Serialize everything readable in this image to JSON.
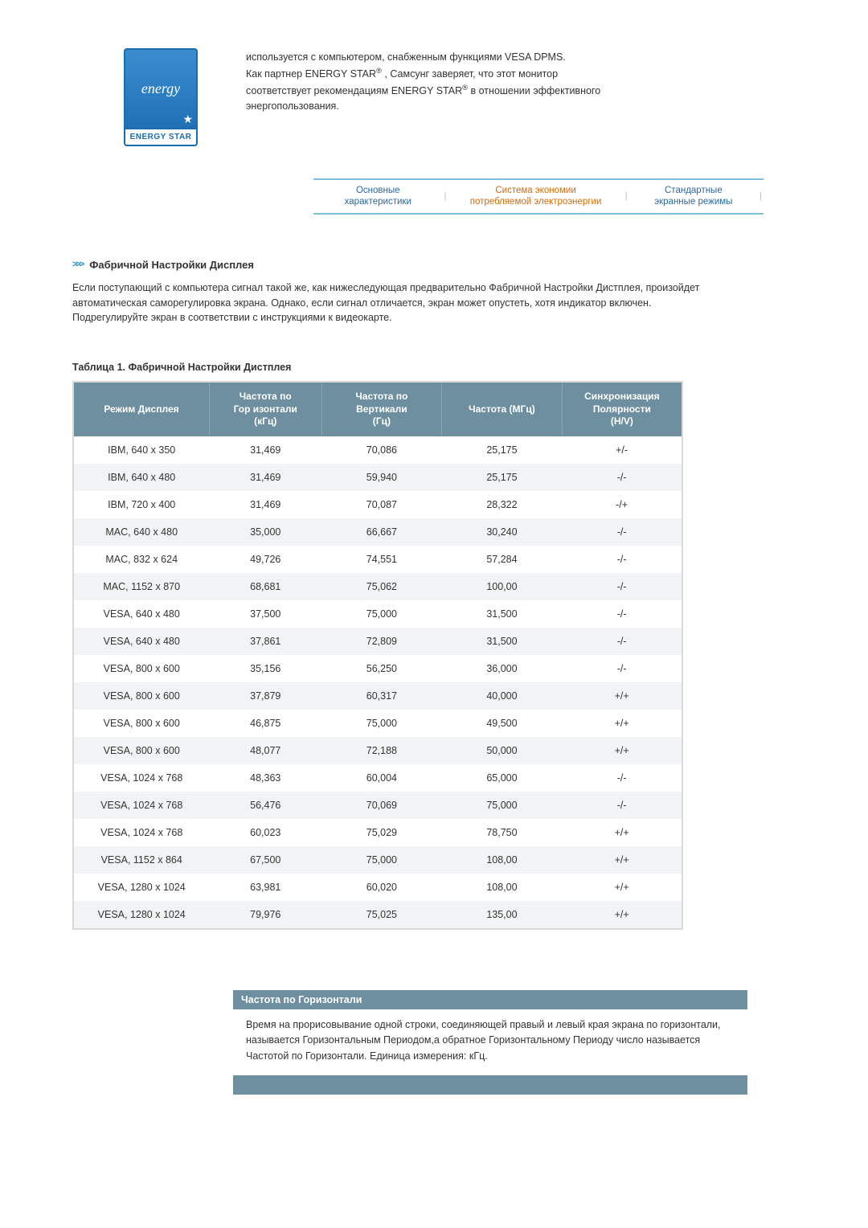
{
  "energy_logo": {
    "script_text": "energy",
    "bottom_text": "ENERGY STAR"
  },
  "intro": {
    "line1": "используется с компьютером, снабженным функциями VESA DPMS.",
    "line2a": "Как партнер ENERGY STAR",
    "line2b": " , Самсунг заверяет, что этот монитор",
    "line3a": "соответствует рекомендациям ENERGY STAR",
    "line3b": " в отношении эффективного",
    "line4": "энергопользования."
  },
  "tabs": {
    "t1": {
      "l1": "Основные",
      "l2": "характеристики"
    },
    "t2": {
      "l1": "Система экономии",
      "l2": "потребляемой электроэнергии"
    },
    "t3": {
      "l1": "Стандартные",
      "l2": "экранные режимы"
    }
  },
  "section_title": "Фабричной Настройки Дисплея",
  "section_para": "Если поступающий с компьютера сигнал такой же, как нижеследующая предварительно Фабричной Настройки Дистплея, произойдет автоматическая саморегулировка экрана. Однако, если сигнал отличается, экран может опустеть, хотя индикатор включен. Подрегулируйте экран в соответствии с инструкциями к видеокарте.",
  "table_title": "Таблица 1. Фабричной Настройки Дистплея",
  "table": {
    "headers": {
      "c1": "Режим Дисплея",
      "c2a": "Частота по",
      "c2b": "Гор изонтали",
      "c2c": "(кГц)",
      "c3a": "Частота по",
      "c3b": "Вертикали",
      "c3c": "(Гц)",
      "c4": "Частота (МГц)",
      "c5a": "Синхронизация",
      "c5b": "Полярности",
      "c5c": "(H/V)"
    },
    "col_widths": [
      "170px",
      "140px",
      "150px",
      "150px",
      "150px"
    ],
    "header_bg": "#6d8f9f",
    "stripe_bg": "#f1f3f4",
    "rows": [
      {
        "c1": "IBM, 640 x 350",
        "c2": "31,469",
        "c3": "70,086",
        "c4": "25,175",
        "c5": "+/-"
      },
      {
        "c1": "IBM, 640 x 480",
        "c2": "31,469",
        "c3": "59,940",
        "c4": "25,175",
        "c5": "-/-"
      },
      {
        "c1": "IBM, 720 x 400",
        "c2": "31,469",
        "c3": "70,087",
        "c4": "28,322",
        "c5": "-/+"
      },
      {
        "c1": "MAC, 640 x 480",
        "c2": "35,000",
        "c3": "66,667",
        "c4": "30,240",
        "c5": "-/-"
      },
      {
        "c1": "MAC, 832 x 624",
        "c2": "49,726",
        "c3": "74,551",
        "c4": "57,284",
        "c5": "-/-"
      },
      {
        "c1": "MAC, 1152 x 870",
        "c2": "68,681",
        "c3": "75,062",
        "c4": "100,00",
        "c5": "-/-"
      },
      {
        "c1": "VESA, 640 x 480",
        "c2": "37,500",
        "c3": "75,000",
        "c4": "31,500",
        "c5": "-/-"
      },
      {
        "c1": "VESA, 640 x 480",
        "c2": "37,861",
        "c3": "72,809",
        "c4": "31,500",
        "c5": "-/-"
      },
      {
        "c1": "VESA, 800 x 600",
        "c2": "35,156",
        "c3": "56,250",
        "c4": "36,000",
        "c5": "-/-"
      },
      {
        "c1": "VESA, 800 x 600",
        "c2": "37,879",
        "c3": "60,317",
        "c4": "40,000",
        "c5": "+/+"
      },
      {
        "c1": "VESA, 800 x 600",
        "c2": "46,875",
        "c3": "75,000",
        "c4": "49,500",
        "c5": "+/+"
      },
      {
        "c1": "VESA, 800 x 600",
        "c2": "48,077",
        "c3": "72,188",
        "c4": "50,000",
        "c5": "+/+"
      },
      {
        "c1": "VESA, 1024 x 768",
        "c2": "48,363",
        "c3": "60,004",
        "c4": "65,000",
        "c5": "-/-"
      },
      {
        "c1": "VESA, 1024 x 768",
        "c2": "56,476",
        "c3": "70,069",
        "c4": "75,000",
        "c5": "-/-"
      },
      {
        "c1": "VESA, 1024 x 768",
        "c2": "60,023",
        "c3": "75,029",
        "c4": "78,750",
        "c5": "+/+"
      },
      {
        "c1": "VESA, 1152 x 864",
        "c2": "67,500",
        "c3": "75,000",
        "c4": "108,00",
        "c5": "+/+"
      },
      {
        "c1": "VESA, 1280 x 1024",
        "c2": "63,981",
        "c3": "60,020",
        "c4": "108,00",
        "c5": "+/+"
      },
      {
        "c1": "VESA, 1280 x 1024",
        "c2": "79,976",
        "c3": "75,025",
        "c4": "135,00",
        "c5": "+/+"
      }
    ]
  },
  "def": {
    "head": "Частота по Горизонтали",
    "body": "Время на прорисовывание одной строки, соединяющей правый и левый края экрана по горизонтали, называется Горизонтальным Периодом,а обратное Горизонтальному Периоду число называется Частотой по Горизонтали. Единица измерения: кГц."
  }
}
